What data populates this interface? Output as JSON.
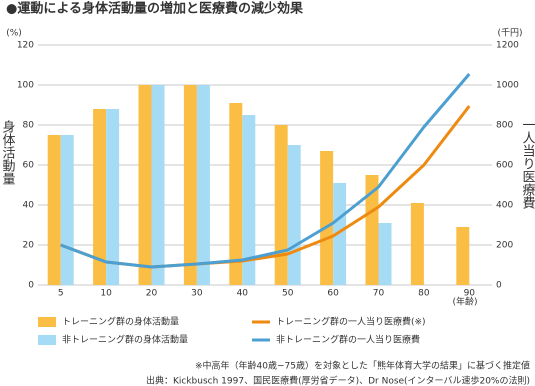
{
  "chart_data": {
    "type": "bar-line",
    "title": "●運動による身体活動量の増加と医療費の減少効果",
    "y_label": "身体活動量",
    "y_unit": "(%)",
    "y2_label": "一人当り医療費",
    "y2_unit": "(千円)",
    "x_unit": "(年齢)",
    "categories": [
      "5",
      "10",
      "20",
      "30",
      "40",
      "50",
      "60",
      "70",
      "80",
      "90"
    ],
    "ylim": [
      0,
      120
    ],
    "yticks": [
      0,
      20,
      40,
      60,
      80,
      100,
      120
    ],
    "y2lim": [
      0,
      1200
    ],
    "y2ticks": [
      0,
      200,
      400,
      600,
      800,
      1000,
      1200
    ],
    "grid": true,
    "series": [
      {
        "name": "トレーニング群の身体活動量",
        "type": "bar",
        "color": "#fbbe45",
        "values": [
          75,
          88,
          100,
          100,
          91,
          80,
          67,
          55,
          41,
          29
        ]
      },
      {
        "name": "非トレーニング群の身体活動量",
        "type": "bar",
        "color": "#a6dbf6",
        "values": [
          75,
          88,
          100,
          100,
          85,
          70,
          51,
          31,
          null,
          null
        ]
      },
      {
        "name": "トレーニング群の一人当り医療費(※)",
        "type": "line",
        "axis": "y2",
        "color": "#ef8a10",
        "values": [
          200,
          115,
          90,
          105,
          120,
          155,
          245,
          390,
          600,
          895
        ]
      },
      {
        "name": "非トレーニング群の一人当り医療費",
        "type": "line",
        "axis": "y2",
        "color": "#4b9fd1",
        "values": [
          200,
          115,
          90,
          105,
          125,
          175,
          310,
          490,
          790,
          1055
        ]
      }
    ],
    "notes": [
      "※中高年（年齢40歳−75歳）を対象とした「熊年体育大学の結果」に基づく推定値",
      "出典：Kickbusch 1997、国民医療費(厚労省データ)、Dr Nose(インターバル速歩20%の法則)"
    ]
  }
}
